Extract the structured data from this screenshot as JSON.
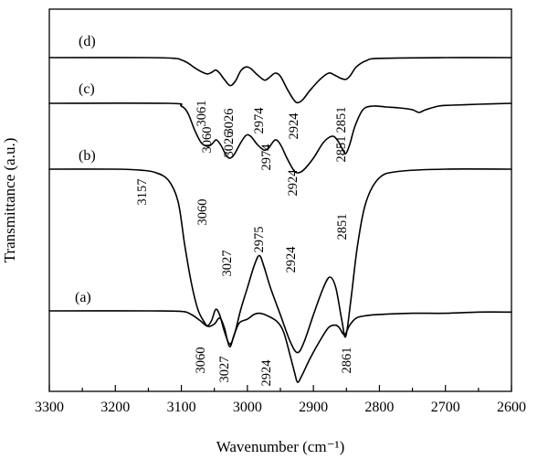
{
  "chart_data": {
    "type": "line",
    "title": "",
    "xlabel": "Wavenumber (cm⁻¹)",
    "ylabel": "Transmittance (a.u.)",
    "xlim": [
      3300,
      2600
    ],
    "x_reversed": true,
    "x_ticks": [
      "3300",
      "3200",
      "3100",
      "3000",
      "2900",
      "2800",
      "2700",
      "2600"
    ],
    "y_ticks_shown": false,
    "legend": "none",
    "series": [
      {
        "name": "(a)",
        "baseline": 0.0,
        "points": [
          [
            3300,
            0.0
          ],
          [
            3150,
            0.0
          ],
          [
            3100,
            -0.004
          ],
          [
            3085,
            -0.03
          ],
          [
            3072,
            -0.08
          ],
          [
            3060,
            -0.13
          ],
          [
            3050,
            -0.11
          ],
          [
            3042,
            -0.06
          ],
          [
            3035,
            -0.14
          ],
          [
            3027,
            -0.3
          ],
          [
            3020,
            -0.2
          ],
          [
            3012,
            -0.1
          ],
          [
            3000,
            -0.07
          ],
          [
            2990,
            -0.03
          ],
          [
            2982,
            -0.02
          ],
          [
            2970,
            -0.04
          ],
          [
            2955,
            -0.09
          ],
          [
            2945,
            -0.18
          ],
          [
            2935,
            -0.38
          ],
          [
            2928,
            -0.53
          ],
          [
            2924,
            -0.6
          ],
          [
            2918,
            -0.55
          ],
          [
            2905,
            -0.4
          ],
          [
            2890,
            -0.25
          ],
          [
            2877,
            -0.14
          ],
          [
            2867,
            -0.12
          ],
          [
            2861,
            -0.14
          ],
          [
            2853,
            -0.2
          ],
          [
            2845,
            -0.12
          ],
          [
            2835,
            -0.06
          ],
          [
            2820,
            -0.04
          ],
          [
            2800,
            -0.03
          ],
          [
            2750,
            -0.02
          ],
          [
            2700,
            -0.02
          ],
          [
            2650,
            -0.01
          ],
          [
            2600,
            -0.01
          ]
        ],
        "peaks": [
          "3060",
          "3027",
          "2924",
          "2861"
        ]
      },
      {
        "name": "(b)",
        "baseline": 1.0,
        "points": [
          [
            3300,
            1.0
          ],
          [
            3200,
            1.0
          ],
          [
            3160,
            0.99
          ],
          [
            3140,
            0.97
          ],
          [
            3120,
            0.9
          ],
          [
            3105,
            0.7
          ],
          [
            3095,
            0.3
          ],
          [
            3085,
            -0.05
          ],
          [
            3075,
            -0.3
          ],
          [
            3065,
            -0.42
          ],
          [
            3060,
            -0.45
          ],
          [
            3054,
            -0.4
          ],
          [
            3048,
            -0.3
          ],
          [
            3042,
            -0.35
          ],
          [
            3035,
            -0.5
          ],
          [
            3027,
            -0.62
          ],
          [
            3020,
            -0.54
          ],
          [
            3010,
            -0.3
          ],
          [
            3000,
            -0.1
          ],
          [
            2990,
            0.1
          ],
          [
            2982,
            0.2
          ],
          [
            2975,
            0.1
          ],
          [
            2965,
            -0.1
          ],
          [
            2950,
            -0.35
          ],
          [
            2935,
            -0.6
          ],
          [
            2924,
            -0.7
          ],
          [
            2914,
            -0.6
          ],
          [
            2900,
            -0.35
          ],
          [
            2885,
            -0.1
          ],
          [
            2875,
            0.0
          ],
          [
            2866,
            -0.1
          ],
          [
            2857,
            -0.4
          ],
          [
            2851,
            -0.55
          ],
          [
            2843,
            -0.2
          ],
          [
            2833,
            0.3
          ],
          [
            2820,
            0.7
          ],
          [
            2800,
            0.92
          ],
          [
            2770,
            0.98
          ],
          [
            2700,
            1.0
          ],
          [
            2600,
            1.0
          ]
        ],
        "peaks": [
          "3157",
          "3060",
          "3027",
          "2975",
          "2924",
          "2851"
        ]
      },
      {
        "name": "(c)",
        "baseline": 1.55,
        "points": [
          [
            3300,
            1.55
          ],
          [
            3120,
            1.55
          ],
          [
            3100,
            1.52
          ],
          [
            3090,
            1.44
          ],
          [
            3080,
            1.26
          ],
          [
            3070,
            1.12
          ],
          [
            3060,
            1.08
          ],
          [
            3053,
            1.11
          ],
          [
            3047,
            1.15
          ],
          [
            3040,
            1.09
          ],
          [
            3032,
            0.98
          ],
          [
            3026,
            0.95
          ],
          [
            3020,
            0.99
          ],
          [
            3010,
            1.12
          ],
          [
            3002,
            1.2
          ],
          [
            2995,
            1.19
          ],
          [
            2985,
            1.1
          ],
          [
            2975,
            1.04
          ],
          [
            2968,
            1.06
          ],
          [
            2958,
            1.15
          ],
          [
            2950,
            1.1
          ],
          [
            2940,
            0.95
          ],
          [
            2930,
            0.82
          ],
          [
            2924,
            0.79
          ],
          [
            2915,
            0.82
          ],
          [
            2900,
            0.95
          ],
          [
            2885,
            1.12
          ],
          [
            2872,
            1.19
          ],
          [
            2864,
            1.15
          ],
          [
            2856,
            1.05
          ],
          [
            2851,
            1.0
          ],
          [
            2845,
            1.1
          ],
          [
            2837,
            1.3
          ],
          [
            2825,
            1.48
          ],
          [
            2810,
            1.52
          ],
          [
            2790,
            1.51
          ],
          [
            2770,
            1.5
          ],
          [
            2750,
            1.48
          ],
          [
            2740,
            1.45
          ],
          [
            2730,
            1.48
          ],
          [
            2710,
            1.52
          ],
          [
            2690,
            1.53
          ],
          [
            2650,
            1.54
          ],
          [
            2600,
            1.55
          ]
        ],
        "peaks": [
          "3060",
          "3026",
          "2974",
          "2924",
          "2851"
        ]
      },
      {
        "name": "(d)",
        "baseline": 2.0,
        "points": [
          [
            3300,
            2.0
          ],
          [
            3150,
            2.0
          ],
          [
            3110,
            1.99
          ],
          [
            3100,
            1.97
          ],
          [
            3090,
            1.93
          ],
          [
            3080,
            1.87
          ],
          [
            3070,
            1.82
          ],
          [
            3061,
            1.79
          ],
          [
            3054,
            1.81
          ],
          [
            3048,
            1.84
          ],
          [
            3042,
            1.8
          ],
          [
            3035,
            1.72
          ],
          [
            3026,
            1.64
          ],
          [
            3018,
            1.7
          ],
          [
            3010,
            1.83
          ],
          [
            3002,
            1.88
          ],
          [
            2995,
            1.86
          ],
          [
            2985,
            1.78
          ],
          [
            2974,
            1.71
          ],
          [
            2966,
            1.75
          ],
          [
            2958,
            1.8
          ],
          [
            2950,
            1.76
          ],
          [
            2940,
            1.6
          ],
          [
            2930,
            1.46
          ],
          [
            2924,
            1.42
          ],
          [
            2916,
            1.46
          ],
          [
            2905,
            1.58
          ],
          [
            2890,
            1.72
          ],
          [
            2877,
            1.8
          ],
          [
            2869,
            1.78
          ],
          [
            2860,
            1.74
          ],
          [
            2851,
            1.72
          ],
          [
            2844,
            1.77
          ],
          [
            2835,
            1.88
          ],
          [
            2820,
            1.96
          ],
          [
            2800,
            1.99
          ],
          [
            2700,
            2.0
          ],
          [
            2600,
            2.0
          ]
        ],
        "peaks": [
          "3061",
          "3026",
          "2974",
          "2924",
          "2851"
        ]
      }
    ]
  }
}
